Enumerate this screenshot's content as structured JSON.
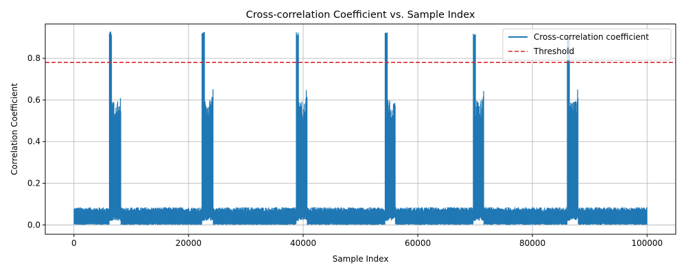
{
  "chart_data": {
    "type": "line",
    "title": "Cross-correlation Coefficient vs. Sample Index",
    "xlabel": "Sample Index",
    "ylabel": "Correlation Coefficient",
    "xlim": [
      -5000,
      105000
    ],
    "ylim": [
      -0.045,
      0.965
    ],
    "xticks": [
      0,
      20000,
      40000,
      60000,
      80000,
      100000
    ],
    "xtick_labels": [
      "0",
      "20000",
      "40000",
      "60000",
      "80000",
      "100000"
    ],
    "yticks": [
      0.0,
      0.2,
      0.4,
      0.6,
      0.8
    ],
    "ytick_labels": [
      "0.0",
      "0.2",
      "0.4",
      "0.6",
      "0.8"
    ],
    "grid": true,
    "legend_position": "top-right",
    "series": [
      {
        "name": "Cross-correlation coefficient",
        "color": "#1f77b4",
        "style": "solid",
        "description_points": {
          "baseline_range": [
            0.0,
            0.08
          ],
          "x_range": [
            0,
            100000
          ],
          "peaks": [
            {
              "x": 6300,
              "y": 0.93,
              "cluster_end": 8200,
              "secondary_peak": 0.665
            },
            {
              "x": 22500,
              "y": 0.93,
              "cluster_end": 24300,
              "secondary_peak": 0.66
            },
            {
              "x": 38900,
              "y": 0.925,
              "cluster_end": 40700,
              "secondary_peak": 0.66
            },
            {
              "x": 54400,
              "y": 0.925,
              "cluster_end": 56100,
              "secondary_peak": 0.65
            },
            {
              "x": 69800,
              "y": 0.92,
              "cluster_end": 71500,
              "secondary_peak": 0.66
            },
            {
              "x": 86200,
              "y": 0.91,
              "cluster_end": 88000,
              "secondary_peak": 0.65
            }
          ]
        }
      },
      {
        "name": "Threshold",
        "color": "#d62728",
        "style": "dashed",
        "y": 0.78
      }
    ]
  }
}
